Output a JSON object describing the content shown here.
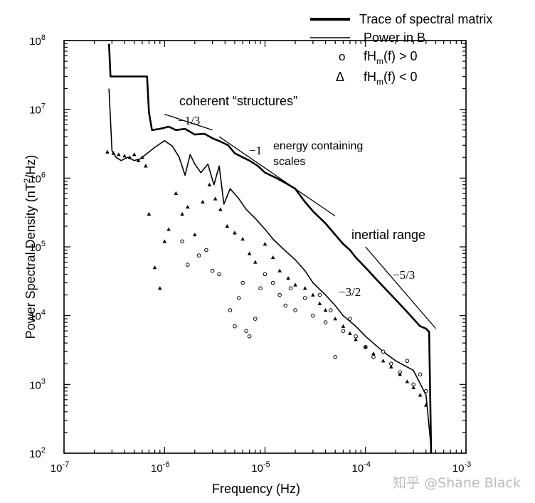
{
  "chart_data": {
    "type": "line",
    "xlabel": "Frequency (Hz)",
    "ylabel_parts": {
      "pre": "Power Spectral Density (nT",
      "sup": "2",
      "post": "/Hz)"
    },
    "xscale": "log",
    "yscale": "log",
    "xlim": [
      1e-07,
      0.001
    ],
    "ylim": [
      100,
      100000000
    ],
    "x_tick_labels": [
      {
        "base": "10",
        "exp": "-7"
      },
      {
        "base": "10",
        "exp": "-6"
      },
      {
        "base": "10",
        "exp": "-5"
      },
      {
        "base": "10",
        "exp": "-4"
      },
      {
        "base": "10",
        "exp": "-3"
      }
    ],
    "y_tick_labels": [
      {
        "base": "10",
        "exp": "2"
      },
      {
        "base": "10",
        "exp": "3"
      },
      {
        "base": "10",
        "exp": "4"
      },
      {
        "base": "10",
        "exp": "5"
      },
      {
        "base": "10",
        "exp": "6"
      },
      {
        "base": "10",
        "exp": "7"
      },
      {
        "base": "10",
        "exp": "8"
      }
    ],
    "legend": {
      "placement": "top-right",
      "trace_label": "Trace of spectral matrix",
      "power_label": "Power in B",
      "pos_label": {
        "pre": "fH",
        "sub": "m",
        "post": "(f) > 0"
      },
      "neg_label": {
        "pre": "fH",
        "sub": "m",
        "post": "(f) < 0"
      },
      "pos_symbol": "o",
      "neg_symbol": "Δ"
    },
    "annotations": {
      "coherent": "coherent “structures”",
      "energy_line1": "energy containing",
      "energy_line2": "scales",
      "inertial": "inertial range",
      "slope_13": "−1/3",
      "slope_1": "−1",
      "slope_32": "−3/2",
      "slope_53": "−5/3"
    },
    "series": [
      {
        "name": "Trace of spectral matrix",
        "points": [
          [
            2.8e-07,
            90000000
          ],
          [
            2.9e-07,
            30000000
          ],
          [
            4e-07,
            30000000
          ],
          [
            6.7e-07,
            30000000
          ],
          [
            7e-07,
            9000000
          ],
          [
            7.5e-07,
            5000000
          ],
          [
            9e-07,
            5200000
          ],
          [
            1.1e-06,
            5600000
          ],
          [
            1.3e-06,
            5000000
          ],
          [
            1.6e-06,
            5200000
          ],
          [
            2e-06,
            4300000
          ],
          [
            2.5e-06,
            4400000
          ],
          [
            3e-06,
            3800000
          ],
          [
            3.6e-06,
            3400000
          ],
          [
            4.3e-06,
            3000000
          ],
          [
            5e-06,
            2300000
          ],
          [
            6e-06,
            2000000
          ],
          [
            7e-06,
            1800000
          ],
          [
            8.5e-06,
            1500000
          ],
          [
            1e-05,
            1200000
          ],
          [
            1.3e-05,
            1000000
          ],
          [
            1.6e-05,
            850000
          ],
          [
            2e-05,
            700000
          ],
          [
            2.5e-05,
            450000
          ],
          [
            3e-05,
            330000
          ],
          [
            4e-05,
            220000
          ],
          [
            5e-05,
            150000
          ],
          [
            6e-05,
            110000
          ],
          [
            7e-05,
            90000
          ],
          [
            8e-05,
            70000
          ],
          [
            0.0001,
            50000
          ],
          [
            0.00013,
            33000
          ],
          [
            0.00016,
            24000
          ],
          [
            0.0002,
            17000
          ],
          [
            0.00025,
            12000
          ],
          [
            0.0003,
            9000
          ],
          [
            0.00035,
            7000
          ],
          [
            0.0004,
            6500
          ],
          [
            0.00043,
            5800
          ],
          [
            0.00045,
            100
          ]
        ]
      },
      {
        "name": "Power in B",
        "points": [
          [
            2.8e-07,
            20000000
          ],
          [
            3e-07,
            2500000
          ],
          [
            3.3e-07,
            2000000
          ],
          [
            3.7e-07,
            1800000
          ],
          [
            4.3e-07,
            2000000
          ],
          [
            5e-07,
            1800000
          ],
          [
            5.7e-07,
            1900000
          ],
          [
            6.5e-07,
            2200000
          ],
          [
            8e-07,
            2800000
          ],
          [
            1e-06,
            3500000
          ],
          [
            1.2e-06,
            2900000
          ],
          [
            1.4e-06,
            2000000
          ],
          [
            1.6e-06,
            1100000
          ],
          [
            1.8e-06,
            2200000
          ],
          [
            2e-06,
            1600000
          ],
          [
            2.3e-06,
            1200000
          ],
          [
            2.7e-06,
            1600000
          ],
          [
            3.1e-06,
            800000
          ],
          [
            3.5e-06,
            1500000
          ],
          [
            3.9e-06,
            420000
          ],
          [
            4.5e-06,
            700000
          ],
          [
            5.5e-06,
            500000
          ],
          [
            6.5e-06,
            350000
          ],
          [
            8e-06,
            260000
          ],
          [
            1e-05,
            180000
          ],
          [
            1.2e-05,
            130000
          ],
          [
            1.5e-05,
            95000
          ],
          [
            2e-05,
            65000
          ],
          [
            2.5e-05,
            45000
          ],
          [
            3e-05,
            30000
          ],
          [
            4e-05,
            20000
          ],
          [
            5e-05,
            14000
          ],
          [
            6e-05,
            10000
          ],
          [
            8e-05,
            7000
          ],
          [
            0.0001,
            5000
          ],
          [
            0.00015,
            3000
          ],
          [
            0.0002,
            2200
          ],
          [
            0.0003,
            1600
          ],
          [
            0.0004,
            700
          ],
          [
            0.00045,
            120
          ]
        ]
      },
      {
        "name": "fHm(f) > 0",
        "points": [
          [
            1.5e-06,
            120000
          ],
          [
            1.7e-06,
            55000
          ],
          [
            2.2e-06,
            75000
          ],
          [
            2.6e-06,
            90000
          ],
          [
            3e-06,
            45000
          ],
          [
            3.5e-06,
            40000
          ],
          [
            4.5e-06,
            12000
          ],
          [
            5e-06,
            7000
          ],
          [
            5.5e-06,
            18000
          ],
          [
            6e-06,
            30000
          ],
          [
            6.5e-06,
            6000
          ],
          [
            7e-06,
            5000
          ],
          [
            8e-06,
            9000
          ],
          [
            9e-06,
            25000
          ],
          [
            1e-05,
            40000
          ],
          [
            1.2e-05,
            30000
          ],
          [
            1.4e-05,
            20000
          ],
          [
            1.6e-05,
            14000
          ],
          [
            1.8e-05,
            25000
          ],
          [
            2e-05,
            12000
          ],
          [
            2.5e-05,
            18000
          ],
          [
            3e-05,
            10000
          ],
          [
            3.5e-05,
            20000
          ],
          [
            4e-05,
            8000
          ],
          [
            4.5e-05,
            12000
          ],
          [
            5e-05,
            2500
          ],
          [
            6e-05,
            6000
          ],
          [
            7e-05,
            9000
          ],
          [
            8e-05,
            5000
          ],
          [
            0.0001,
            3500
          ],
          [
            0.00012,
            2500
          ],
          [
            0.00015,
            3000
          ],
          [
            0.00018,
            2000
          ],
          [
            0.00022,
            1500
          ],
          [
            0.00026,
            2200
          ],
          [
            0.0003,
            1000
          ],
          [
            0.00035,
            1400
          ],
          [
            0.0004,
            800
          ]
        ]
      },
      {
        "name": "fHm(f) < 0",
        "points": [
          [
            2.7e-07,
            2400000
          ],
          [
            3.1e-07,
            2300000
          ],
          [
            3.5e-07,
            2200000
          ],
          [
            4e-07,
            2100000
          ],
          [
            4.5e-07,
            2000000
          ],
          [
            5e-07,
            2200000
          ],
          [
            5.5e-07,
            1800000
          ],
          [
            6e-07,
            2000000
          ],
          [
            6.5e-07,
            1500000
          ],
          [
            7e-07,
            300000
          ],
          [
            8e-07,
            50000
          ],
          [
            9e-07,
            25000
          ],
          [
            1e-06,
            120000
          ],
          [
            1.1e-06,
            180000
          ],
          [
            1.3e-06,
            600000
          ],
          [
            1.5e-06,
            300000
          ],
          [
            1.7e-06,
            380000
          ],
          [
            2e-06,
            150000
          ],
          [
            2.4e-06,
            450000
          ],
          [
            2.8e-06,
            800000
          ],
          [
            3.2e-06,
            500000
          ],
          [
            3.6e-06,
            350000
          ],
          [
            4.2e-06,
            200000
          ],
          [
            5e-06,
            160000
          ],
          [
            6e-06,
            130000
          ],
          [
            7e-06,
            80000
          ],
          [
            8e-06,
            60000
          ],
          [
            1e-05,
            110000
          ],
          [
            1.2e-05,
            70000
          ],
          [
            1.4e-05,
            45000
          ],
          [
            1.7e-05,
            35000
          ],
          [
            2e-05,
            28000
          ],
          [
            2.5e-05,
            25000
          ],
          [
            3e-05,
            20000
          ],
          [
            3.5e-05,
            15000
          ],
          [
            4e-05,
            12000
          ],
          [
            5e-05,
            9000
          ],
          [
            6e-05,
            7000
          ],
          [
            7e-05,
            5500
          ],
          [
            8e-05,
            4500
          ],
          [
            0.0001,
            3500
          ],
          [
            0.00012,
            2800
          ],
          [
            0.00015,
            2200
          ],
          [
            0.00018,
            1800
          ],
          [
            0.00022,
            1400
          ],
          [
            0.00026,
            1100
          ],
          [
            0.0003,
            900
          ],
          [
            0.00035,
            700
          ],
          [
            0.0004,
            500
          ]
        ]
      }
    ],
    "reference_slopes": [
      {
        "label": "-1/3",
        "x_start": 1e-06,
        "y_start": 8500000,
        "x_end": 3e-06,
        "y_end": 5000000
      },
      {
        "label": "-1",
        "x_start": 3.5e-06,
        "y_start": 4000000,
        "x_end": 5e-05,
        "y_end": 280000
      },
      {
        "label": "-5/3",
        "x_start": 0.0001,
        "y_start": 100000,
        "x_end": 0.0005,
        "y_end": 6500
      }
    ]
  }
}
